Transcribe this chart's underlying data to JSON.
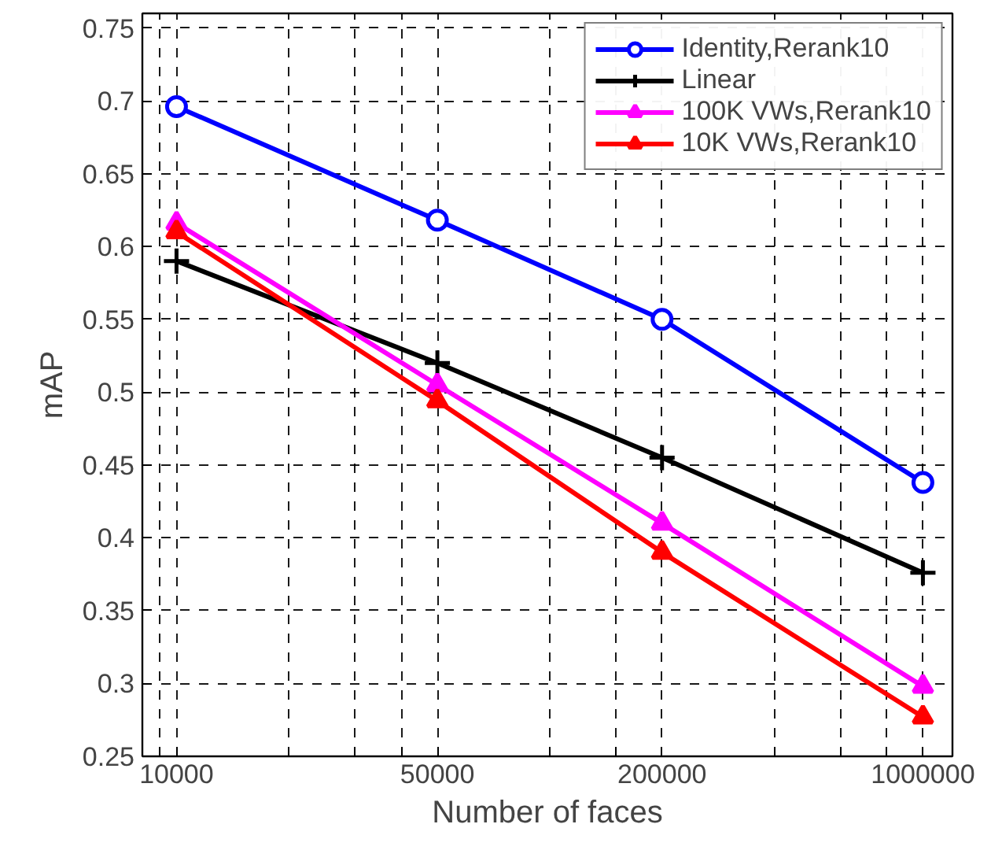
{
  "chart_data": {
    "type": "line",
    "xlabel": "Number of faces",
    "ylabel": "mAP",
    "log": "x",
    "x": [
      10000,
      50000,
      200000,
      1000000
    ],
    "xlim": [
      8100,
      1200000
    ],
    "xticks": [
      {
        "value": 9000,
        "label": null
      },
      10000,
      {
        "value": 20000,
        "label": null
      },
      {
        "value": 30000,
        "label": null
      },
      {
        "value": 40000,
        "label": null
      },
      50000,
      {
        "value": 100000,
        "label": null
      },
      {
        "value": 150000,
        "label": null
      },
      200000,
      {
        "value": 400000,
        "label": null
      },
      {
        "value": 600000,
        "label": null
      },
      {
        "value": 800000,
        "label": null
      },
      1000000
    ],
    "ylim": [
      0.25,
      0.76
    ],
    "yticks": [
      0.25,
      0.3,
      0.35,
      0.4,
      0.45,
      0.5,
      0.55,
      0.6,
      0.65,
      0.7,
      0.75
    ],
    "grid": true,
    "legend": "top right",
    "line_style": "solid",
    "series": [
      {
        "name": "Identity,Rerank10",
        "color": "#0000ff",
        "marker": "circle",
        "values": [
          0.696,
          0.618,
          0.55,
          0.438
        ]
      },
      {
        "name": "Linear",
        "color": "#000000",
        "marker": "cross",
        "values": [
          0.59,
          0.52,
          0.455,
          0.376
        ]
      },
      {
        "name": "100K VWs,Rerank10",
        "color": "#ff00ff",
        "marker": "triangle",
        "values": [
          0.616,
          0.505,
          0.41,
          0.298
        ]
      },
      {
        "name": "10K VWs,Rerank10",
        "color": "#ff0000",
        "marker": "triangle",
        "values": [
          0.61,
          0.494,
          0.39,
          0.277
        ]
      }
    ]
  }
}
